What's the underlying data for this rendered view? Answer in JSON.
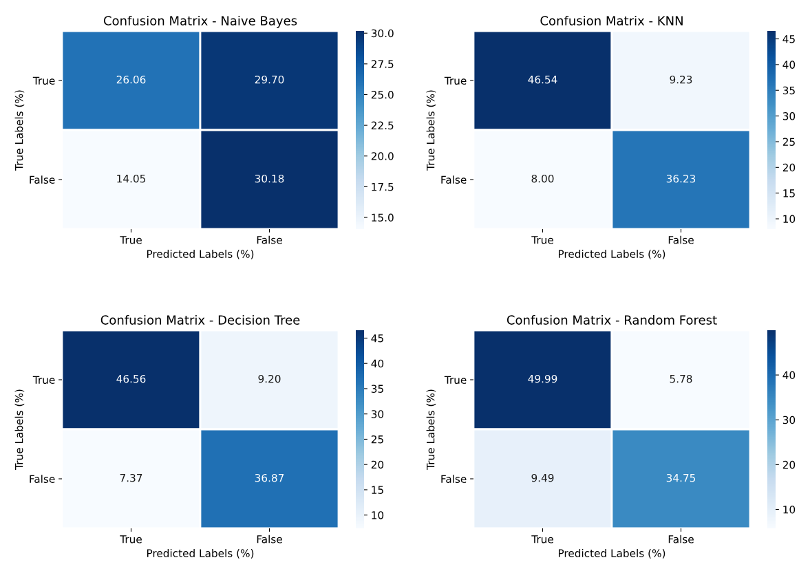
{
  "chart_data": [
    {
      "type": "heatmap",
      "title": "Confusion Matrix - Naive Bayes",
      "xlabel": "Predicted Labels (%)",
      "ylabel": "True Labels (%)",
      "categories": [
        "True",
        "False"
      ],
      "y_categories": [
        "True",
        "False"
      ],
      "cells": [
        [
          26.06,
          29.7
        ],
        [
          14.05,
          30.18
        ]
      ],
      "cell_labels": [
        [
          "26.06",
          "29.70"
        ],
        [
          "14.05",
          "30.18"
        ]
      ],
      "clim": [
        14.05,
        30.18
      ],
      "cticks": [
        {
          "value": 15,
          "label": "15.0"
        },
        {
          "value": 17.5,
          "label": "17.5"
        },
        {
          "value": 20,
          "label": "20.0"
        },
        {
          "value": 22.5,
          "label": "22.5"
        },
        {
          "value": 25,
          "label": "25.0"
        },
        {
          "value": 27.5,
          "label": "27.5"
        },
        {
          "value": 30,
          "label": "30.0"
        }
      ]
    },
    {
      "type": "heatmap",
      "title": "Confusion Matrix - KNN",
      "xlabel": "Predicted Labels (%)",
      "ylabel": "True Labels (%)",
      "categories": [
        "True",
        "False"
      ],
      "y_categories": [
        "True",
        "False"
      ],
      "cells": [
        [
          46.54,
          9.23
        ],
        [
          8.0,
          36.23
        ]
      ],
      "cell_labels": [
        [
          "46.54",
          "9.23"
        ],
        [
          "8.00",
          "36.23"
        ]
      ],
      "clim": [
        8.0,
        46.54
      ],
      "cticks": [
        10,
        15,
        20,
        25,
        30,
        35,
        40,
        45
      ]
    },
    {
      "type": "heatmap",
      "title": "Confusion Matrix - Decision Tree",
      "xlabel": "Predicted Labels (%)",
      "ylabel": "True Labels (%)",
      "categories": [
        "True",
        "False"
      ],
      "y_categories": [
        "True",
        "False"
      ],
      "cells": [
        [
          46.56,
          9.2
        ],
        [
          7.37,
          36.87
        ]
      ],
      "cell_labels": [
        [
          "46.56",
          "9.20"
        ],
        [
          "7.37",
          "36.87"
        ]
      ],
      "clim": [
        7.37,
        46.56
      ],
      "cticks": [
        10,
        15,
        20,
        25,
        30,
        35,
        40,
        45
      ]
    },
    {
      "type": "heatmap",
      "title": "Confusion Matrix - Random Forest",
      "xlabel": "Predicted Labels (%)",
      "ylabel": "True Labels (%)",
      "categories": [
        "True",
        "False"
      ],
      "y_categories": [
        "True",
        "False"
      ],
      "cells": [
        [
          49.99,
          5.78
        ],
        [
          9.49,
          34.75
        ]
      ],
      "cell_labels": [
        [
          "49.99",
          "5.78"
        ],
        [
          "9.49",
          "34.75"
        ]
      ],
      "clim": [
        5.78,
        49.99
      ],
      "cticks": [
        10,
        20,
        30,
        40
      ]
    }
  ]
}
